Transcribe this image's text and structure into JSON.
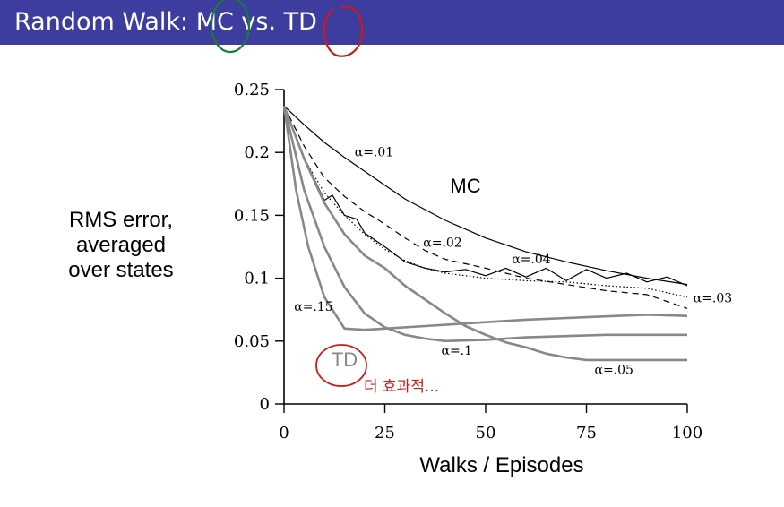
{
  "header": {
    "title": "Random Walk: MC vs. TD",
    "bar_color": "#3d3da0",
    "text_color": "#ffffff"
  },
  "annotations": {
    "mc_circle_color": "#1a7a3c",
    "td_circle_color": "#d01818",
    "handwritten_note": "더 효과적..."
  },
  "chart_data": {
    "type": "line",
    "xlabel": "Walks / Episodes",
    "ylabel_lines": [
      "RMS error,",
      "averaged",
      "over states"
    ],
    "xlim": [
      0,
      100
    ],
    "ylim": [
      0,
      0.25
    ],
    "x_ticks": [
      "0",
      "25",
      "50",
      "75",
      "100"
    ],
    "y_ticks": [
      "0",
      "0.05",
      "0.1",
      "0.15",
      "0.2",
      "0.25"
    ],
    "group_labels": {
      "mc": {
        "text": "MC",
        "color": "#000000"
      },
      "td": {
        "text": "TD",
        "color": "#888888"
      }
    },
    "series": [
      {
        "group": "MC",
        "alpha_label": "α=.01",
        "color": "#000000",
        "dash": "solid",
        "x": [
          0,
          5,
          10,
          15,
          20,
          25,
          30,
          40,
          50,
          60,
          70,
          80,
          90,
          100
        ],
        "y": [
          0.237,
          0.222,
          0.208,
          0.196,
          0.185,
          0.174,
          0.163,
          0.146,
          0.132,
          0.121,
          0.113,
          0.106,
          0.1,
          0.095
        ]
      },
      {
        "group": "MC",
        "alpha_label": "α=.02",
        "color": "#000000",
        "dash": "dashed",
        "x": [
          0,
          5,
          10,
          15,
          20,
          25,
          30,
          35,
          40,
          50,
          60,
          70,
          80,
          90,
          100
        ],
        "y": [
          0.237,
          0.205,
          0.18,
          0.165,
          0.153,
          0.143,
          0.132,
          0.122,
          0.115,
          0.108,
          0.1,
          0.095,
          0.09,
          0.087,
          0.076
        ]
      },
      {
        "group": "MC",
        "alpha_label": "α=.03",
        "color": "#000000",
        "dash": "dotted",
        "x": [
          0,
          5,
          10,
          15,
          20,
          25,
          30,
          35,
          40,
          50,
          60,
          70,
          80,
          90,
          100
        ],
        "y": [
          0.237,
          0.195,
          0.168,
          0.15,
          0.135,
          0.123,
          0.114,
          0.108,
          0.104,
          0.1,
          0.098,
          0.097,
          0.094,
          0.092,
          0.085
        ]
      },
      {
        "group": "MC",
        "alpha_label": "α=.04",
        "color": "#000000",
        "dash": "solid",
        "x": [
          0,
          5,
          10,
          12,
          15,
          18,
          20,
          25,
          30,
          35,
          40,
          45,
          50,
          55,
          60,
          65,
          70,
          75,
          80,
          85,
          90,
          95,
          100
        ],
        "y": [
          0.237,
          0.196,
          0.162,
          0.166,
          0.15,
          0.147,
          0.136,
          0.125,
          0.113,
          0.108,
          0.105,
          0.107,
          0.102,
          0.108,
          0.101,
          0.108,
          0.098,
          0.107,
          0.1,
          0.104,
          0.097,
          0.101,
          0.094
        ]
      },
      {
        "group": "TD",
        "alpha_label": "α=.15",
        "color": "#888888",
        "dash": "solid",
        "x": [
          0,
          3,
          6,
          10,
          15,
          20,
          25,
          35,
          50,
          60,
          75,
          90,
          100
        ],
        "y": [
          0.237,
          0.17,
          0.125,
          0.085,
          0.06,
          0.059,
          0.06,
          0.062,
          0.065,
          0.067,
          0.069,
          0.071,
          0.07
        ]
      },
      {
        "group": "TD",
        "alpha_label": "α=.1",
        "color": "#888888",
        "dash": "solid",
        "x": [
          0,
          5,
          10,
          15,
          20,
          25,
          30,
          35,
          40,
          50,
          60,
          70,
          80,
          90,
          100
        ],
        "y": [
          0.237,
          0.17,
          0.125,
          0.093,
          0.072,
          0.061,
          0.055,
          0.052,
          0.05,
          0.051,
          0.053,
          0.054,
          0.055,
          0.055,
          0.055
        ]
      },
      {
        "group": "TD",
        "alpha_label": "α=.05",
        "color": "#888888",
        "dash": "solid",
        "x": [
          0,
          5,
          10,
          15,
          20,
          25,
          30,
          35,
          40,
          45,
          50,
          55,
          60,
          65,
          70,
          75,
          80,
          90,
          100
        ],
        "y": [
          0.237,
          0.195,
          0.16,
          0.135,
          0.118,
          0.108,
          0.094,
          0.083,
          0.072,
          0.062,
          0.055,
          0.049,
          0.045,
          0.04,
          0.037,
          0.035,
          0.035,
          0.035,
          0.035
        ]
      }
    ]
  }
}
